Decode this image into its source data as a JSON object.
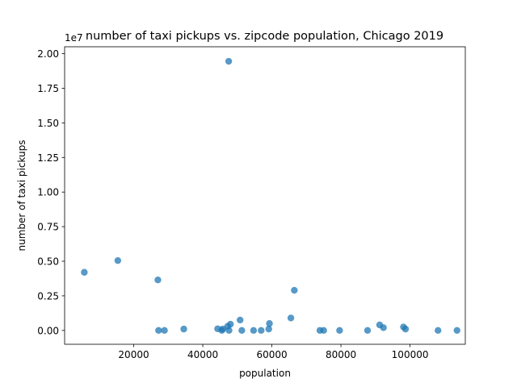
{
  "chart_data": {
    "type": "scatter",
    "title": "number of taxi pickups vs. zipcode population, Chicago 2019",
    "xlabel": "population",
    "ylabel": "number of taxi pickups",
    "y_offset_label": "1e7",
    "xlim": [
      0,
      116000
    ],
    "ylim": [
      -0.1,
      2.05
    ],
    "x_ticks": [
      20000,
      40000,
      60000,
      80000,
      100000
    ],
    "y_ticks": [
      0.0,
      0.25,
      0.5,
      0.75,
      1.0,
      1.25,
      1.5,
      1.75,
      2.0
    ],
    "y_tick_labels": [
      "0.00",
      "0.25",
      "0.50",
      "0.75",
      "1.00",
      "1.25",
      "1.50",
      "1.75",
      "2.00"
    ],
    "y_units_note": "y values in units of 1e7 pickups",
    "grid": false,
    "marker_color": "#1f77b4",
    "series": [
      {
        "points": [
          [
            5700,
            0.42
          ],
          [
            15400,
            0.505
          ],
          [
            27000,
            0.365
          ],
          [
            27200,
            0.0
          ],
          [
            28900,
            0.0
          ],
          [
            34500,
            0.01
          ],
          [
            44300,
            0.012
          ],
          [
            45500,
            0.0
          ],
          [
            45800,
            0.01
          ],
          [
            47200,
            0.03
          ],
          [
            47500,
            1.945
          ],
          [
            47600,
            0.0
          ],
          [
            48000,
            0.045
          ],
          [
            50800,
            0.075
          ],
          [
            51300,
            0.0
          ],
          [
            54700,
            0.0
          ],
          [
            56900,
            0.0
          ],
          [
            59100,
            0.01
          ],
          [
            59300,
            0.05
          ],
          [
            65500,
            0.09
          ],
          [
            66500,
            0.29
          ],
          [
            73900,
            0.0
          ],
          [
            75000,
            0.0
          ],
          [
            79600,
            0.0
          ],
          [
            87700,
            0.0
          ],
          [
            91200,
            0.04
          ],
          [
            92300,
            0.02
          ],
          [
            98100,
            0.025
          ],
          [
            98700,
            0.01
          ],
          [
            108100,
            0.0
          ],
          [
            113600,
            0.0
          ]
        ]
      }
    ]
  }
}
